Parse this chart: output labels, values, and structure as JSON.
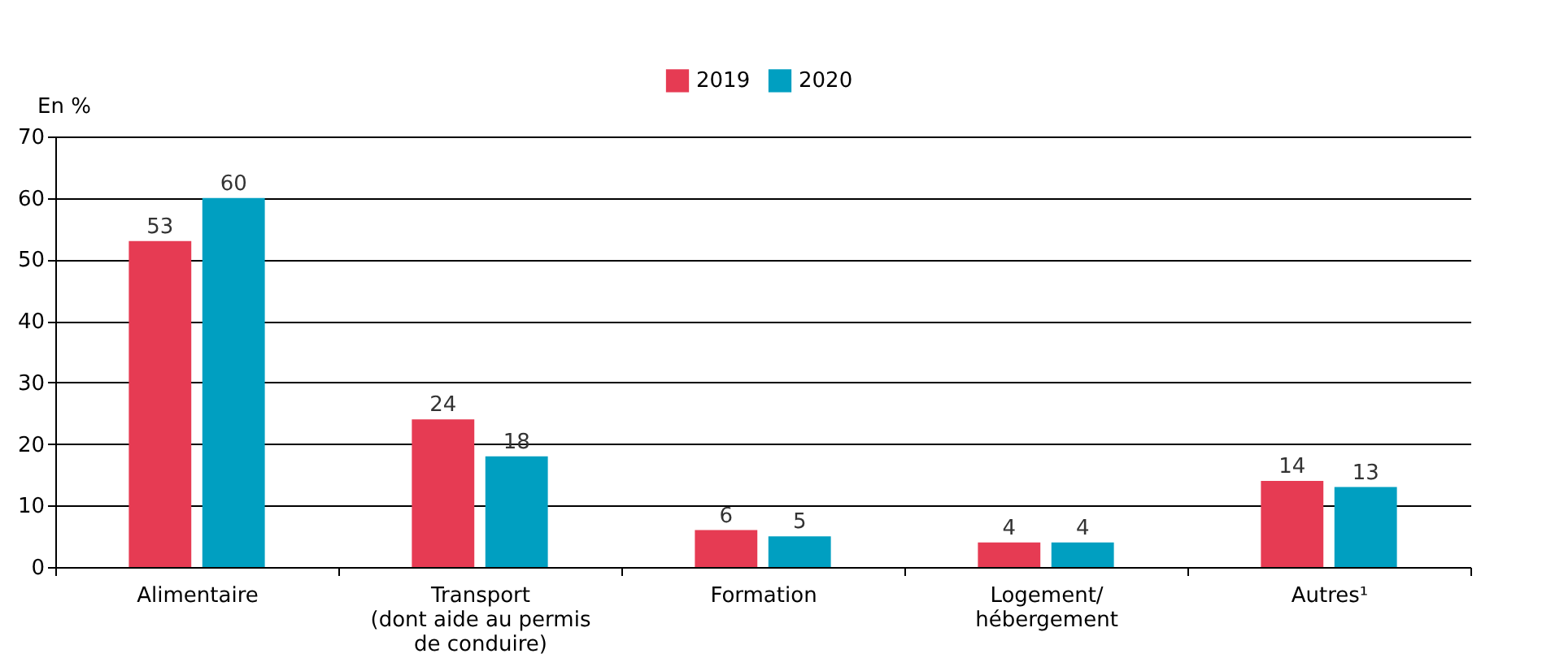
{
  "chart_data": {
    "type": "bar",
    "ylabel": "En %",
    "categories": [
      "Alimentaire",
      "Transport\n(dont aide au permis\nde conduire)",
      "Formation",
      "Logement/\nhébergement",
      "Autres¹"
    ],
    "series": [
      {
        "name": "2019",
        "color": "#e63b53",
        "values": [
          53,
          24,
          6,
          4,
          14
        ]
      },
      {
        "name": "2020",
        "color": "#009fc1",
        "values": [
          60,
          18,
          5,
          4,
          13
        ]
      }
    ],
    "ylim": [
      0,
      70
    ],
    "yticks": [
      0,
      10,
      20,
      30,
      40,
      50,
      60,
      70
    ],
    "grid": "y",
    "legend": "top",
    "data_labels": true
  }
}
